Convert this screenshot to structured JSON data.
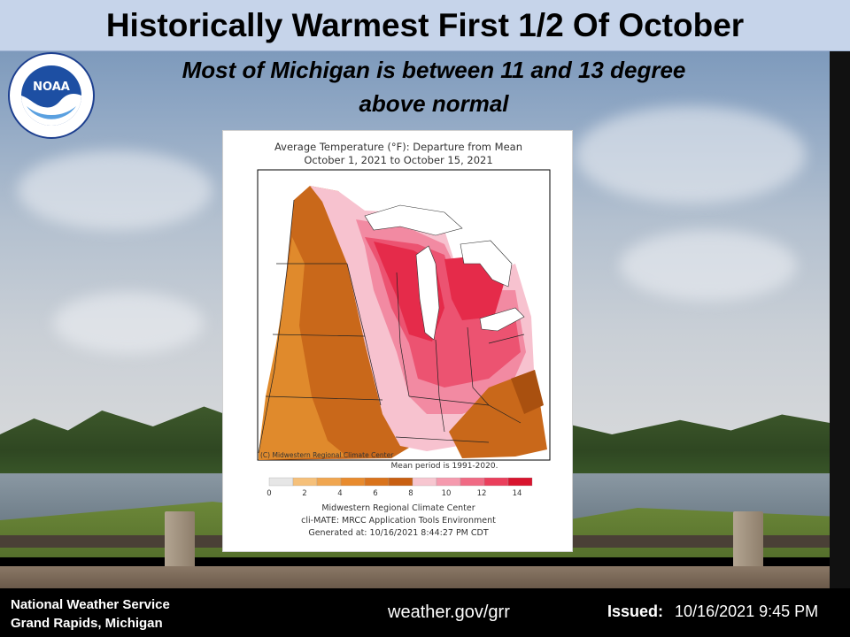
{
  "header": {
    "title": "Historically Warmest First 1/2 Of October",
    "subtitle_line1": "Most of  Michigan is between  11 and 13 degree",
    "subtitle_line2": "above normal"
  },
  "logo": {
    "name": "noaa-logo",
    "text": "NOAA",
    "ring_text_top": "NATIONAL OCEANIC AND ATMOSPHERIC ADMINISTRATION",
    "ring_text_bottom": "U.S. DEPARTMENT OF COMMERCE"
  },
  "map": {
    "title_line1": "Average Temperature (°F): Departure from Mean",
    "title_line2": "October 1, 2021 to October 15, 2021",
    "credit": "(C) Midwestern Regional Climate Center",
    "mean_period": "Mean period is 1991-2020.",
    "legend": {
      "ticks": [
        "0",
        "2",
        "4",
        "6",
        "8",
        "10",
        "12",
        "14"
      ],
      "colors": [
        "#e6e6e6",
        "#f5c07a",
        "#f0a650",
        "#e88b2e",
        "#d9731c",
        "#c85f12",
        "#f7c6d0",
        "#f59aae",
        "#f06a84",
        "#ea3f5c",
        "#d8142e"
      ]
    },
    "footer_line1": "Midwestern Regional Climate Center",
    "footer_line2": "cli-MATE: MRCC Application Tools Environment",
    "footer_line3": "Generated at: 10/16/2021 8:44:27 PM CDT"
  },
  "footer": {
    "office_line1": "National Weather Service",
    "office_line2": "Grand Rapids, Michigan",
    "website": "weather.gov/grr",
    "issued_label": "Issued:",
    "issued_value": "10/16/2021 9:45 PM"
  }
}
